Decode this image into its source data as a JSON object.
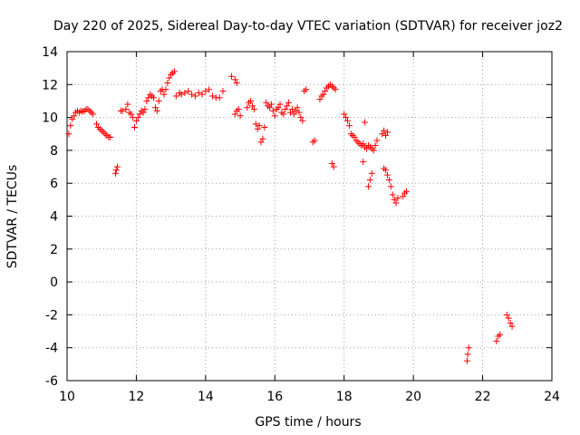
{
  "chart_data": {
    "type": "scatter",
    "title": "Day 220 of 2025, Sidereal Day-to-day VTEC variation (SDTVAR) for receiver joz2",
    "xlabel": "GPS time / hours",
    "ylabel": "SDTVAR / TECUs",
    "xlim": [
      10,
      24
    ],
    "ylim": [
      -6,
      14
    ],
    "x_ticks": [
      10,
      12,
      14,
      16,
      18,
      20,
      22,
      24
    ],
    "y_ticks": [
      -6,
      -4,
      -2,
      0,
      2,
      4,
      6,
      8,
      10,
      12,
      14
    ],
    "grid": true,
    "marker": "plus",
    "marker_color": "#ff0000",
    "series": [
      {
        "name": "SDTVAR",
        "x": [
          10.05,
          10.1,
          10.15,
          10.2,
          10.25,
          10.3,
          10.35,
          10.4,
          10.45,
          10.5,
          10.55,
          10.6,
          10.65,
          10.7,
          10.75,
          10.85,
          10.9,
          10.95,
          11.0,
          11.05,
          11.1,
          11.15,
          11.2,
          11.25,
          11.4,
          11.42,
          11.45,
          11.55,
          11.6,
          11.7,
          11.75,
          11.8,
          11.85,
          11.9,
          11.95,
          12.0,
          12.05,
          12.1,
          12.15,
          12.2,
          12.25,
          12.3,
          12.35,
          12.4,
          12.45,
          12.5,
          12.55,
          12.6,
          12.65,
          12.7,
          12.75,
          12.8,
          12.85,
          12.9,
          12.95,
          13.0,
          13.05,
          13.1,
          13.15,
          13.25,
          13.3,
          13.4,
          13.5,
          13.6,
          13.7,
          13.8,
          13.9,
          14.0,
          14.1,
          14.2,
          14.3,
          14.4,
          14.5,
          14.75,
          14.85,
          14.9,
          14.85,
          14.9,
          14.95,
          15.0,
          15.2,
          15.25,
          15.3,
          15.35,
          15.4,
          15.45,
          15.5,
          15.55,
          15.6,
          15.65,
          15.7,
          15.75,
          15.8,
          15.85,
          15.9,
          15.95,
          16.0,
          16.05,
          16.1,
          16.15,
          16.2,
          16.25,
          16.3,
          16.35,
          16.4,
          16.45,
          16.5,
          16.55,
          16.6,
          16.65,
          16.7,
          16.75,
          16.8,
          16.85,
          16.9,
          17.1,
          17.15,
          17.3,
          17.35,
          17.4,
          17.45,
          17.5,
          17.55,
          17.6,
          17.65,
          17.7,
          17.75,
          17.65,
          17.7,
          18.0,
          18.05,
          18.1,
          18.15,
          18.2,
          18.25,
          18.3,
          18.35,
          18.4,
          18.45,
          18.5,
          18.55,
          18.6,
          18.65,
          18.7,
          18.75,
          18.8,
          18.85,
          18.9,
          18.95,
          18.6,
          18.55,
          18.7,
          18.75,
          18.8,
          19.1,
          19.15,
          19.2,
          19.25,
          19.15,
          19.2,
          19.25,
          19.3,
          19.35,
          19.4,
          19.45,
          19.5,
          19.55,
          19.7,
          19.75,
          19.8,
          21.55,
          21.57,
          21.6,
          22.4,
          22.45,
          22.5,
          22.7,
          22.75,
          22.8,
          22.85
        ],
        "y": [
          9.0,
          9.5,
          9.9,
          10.1,
          10.3,
          10.4,
          10.3,
          10.4,
          10.35,
          10.4,
          10.5,
          10.5,
          10.4,
          10.3,
          10.2,
          9.6,
          9.4,
          9.3,
          9.2,
          9.1,
          9.0,
          8.9,
          8.8,
          8.8,
          6.6,
          6.8,
          7.0,
          10.4,
          10.4,
          10.5,
          10.8,
          10.3,
          10.2,
          10.0,
          9.4,
          9.8,
          10.0,
          10.2,
          10.4,
          10.3,
          10.5,
          11.0,
          11.2,
          11.4,
          11.3,
          11.2,
          10.6,
          10.4,
          11.0,
          11.6,
          11.7,
          11.4,
          11.7,
          12.1,
          12.4,
          12.6,
          12.7,
          12.8,
          11.3,
          11.5,
          11.4,
          11.5,
          11.6,
          11.4,
          11.3,
          11.5,
          11.4,
          11.6,
          11.7,
          11.3,
          11.2,
          11.2,
          11.6,
          12.5,
          12.3,
          12.1,
          10.2,
          10.4,
          10.5,
          10.1,
          10.6,
          10.9,
          11.0,
          10.7,
          10.5,
          9.6,
          9.3,
          9.5,
          8.5,
          8.7,
          9.4,
          10.9,
          10.7,
          10.6,
          10.8,
          10.4,
          10.1,
          10.5,
          10.6,
          10.8,
          10.3,
          10.2,
          10.5,
          10.7,
          10.9,
          10.3,
          10.5,
          10.2,
          10.4,
          10.6,
          10.3,
          10.0,
          9.8,
          11.6,
          11.7,
          8.5,
          8.6,
          11.1,
          11.3,
          11.4,
          11.6,
          11.8,
          11.9,
          12.0,
          11.9,
          11.8,
          11.7,
          7.2,
          7.0,
          10.2,
          10.0,
          9.8,
          9.5,
          9.0,
          8.9,
          8.8,
          8.6,
          8.5,
          8.4,
          8.3,
          8.4,
          8.2,
          8.1,
          8.3,
          8.2,
          8.1,
          8.0,
          8.3,
          8.6,
          9.7,
          7.3,
          5.8,
          6.2,
          6.6,
          9.0,
          9.2,
          8.9,
          9.1,
          6.9,
          6.8,
          6.5,
          6.2,
          5.8,
          5.3,
          5.0,
          4.8,
          5.1,
          5.2,
          5.4,
          5.5,
          -4.8,
          -4.4,
          -4.0,
          -3.6,
          -3.3,
          -3.2,
          -2.0,
          -2.2,
          -2.5,
          -2.7
        ]
      }
    ]
  }
}
